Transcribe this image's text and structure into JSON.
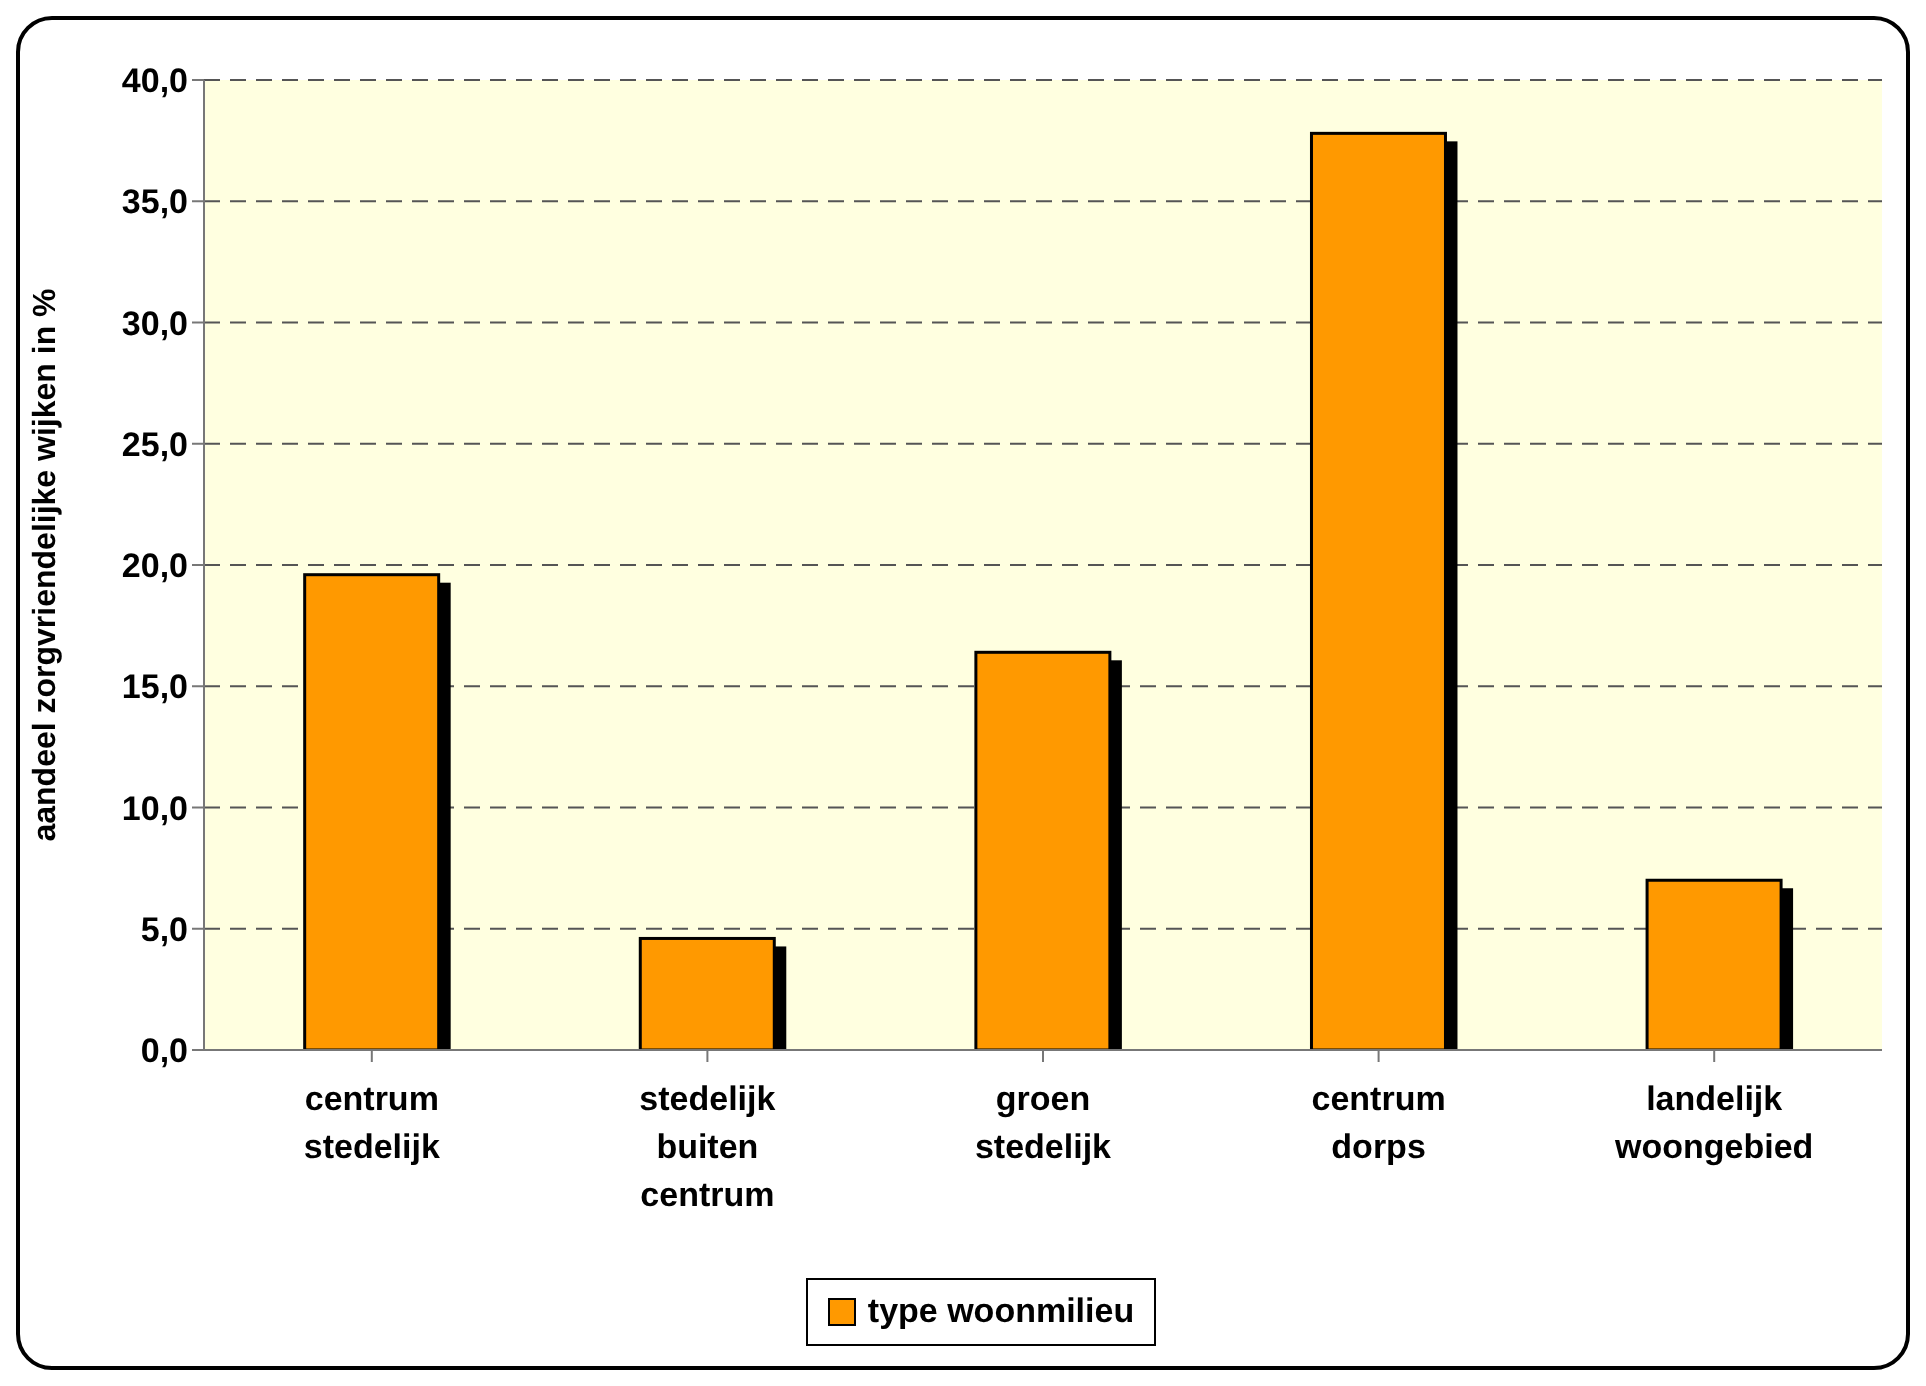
{
  "chart_data": {
    "type": "bar",
    "ylabel": "aandeel zorgvriendelijke wijken in %",
    "categories": [
      "centrum stedelijk",
      "stedelijk buiten centrum",
      "groen stedelijk",
      "centrum dorps",
      "landelijk woongebied"
    ],
    "series": [
      {
        "name": "type woonmilieu",
        "color": "#ff9900",
        "values": [
          19.6,
          4.6,
          16.4,
          37.8,
          7.0
        ]
      }
    ],
    "ylim": [
      0,
      40
    ],
    "yticks": [
      {
        "value": 0,
        "label": "0,0"
      },
      {
        "value": 5,
        "label": "5,0"
      },
      {
        "value": 10,
        "label": "10,0"
      },
      {
        "value": 15,
        "label": "15,0"
      },
      {
        "value": 20,
        "label": "20,0"
      },
      {
        "value": 25,
        "label": "25,0"
      },
      {
        "value": 30,
        "label": "30,0"
      },
      {
        "value": 35,
        "label": "35,0"
      },
      {
        "value": 40,
        "label": "40,0"
      }
    ],
    "grid": "y",
    "legend": "bottom"
  }
}
